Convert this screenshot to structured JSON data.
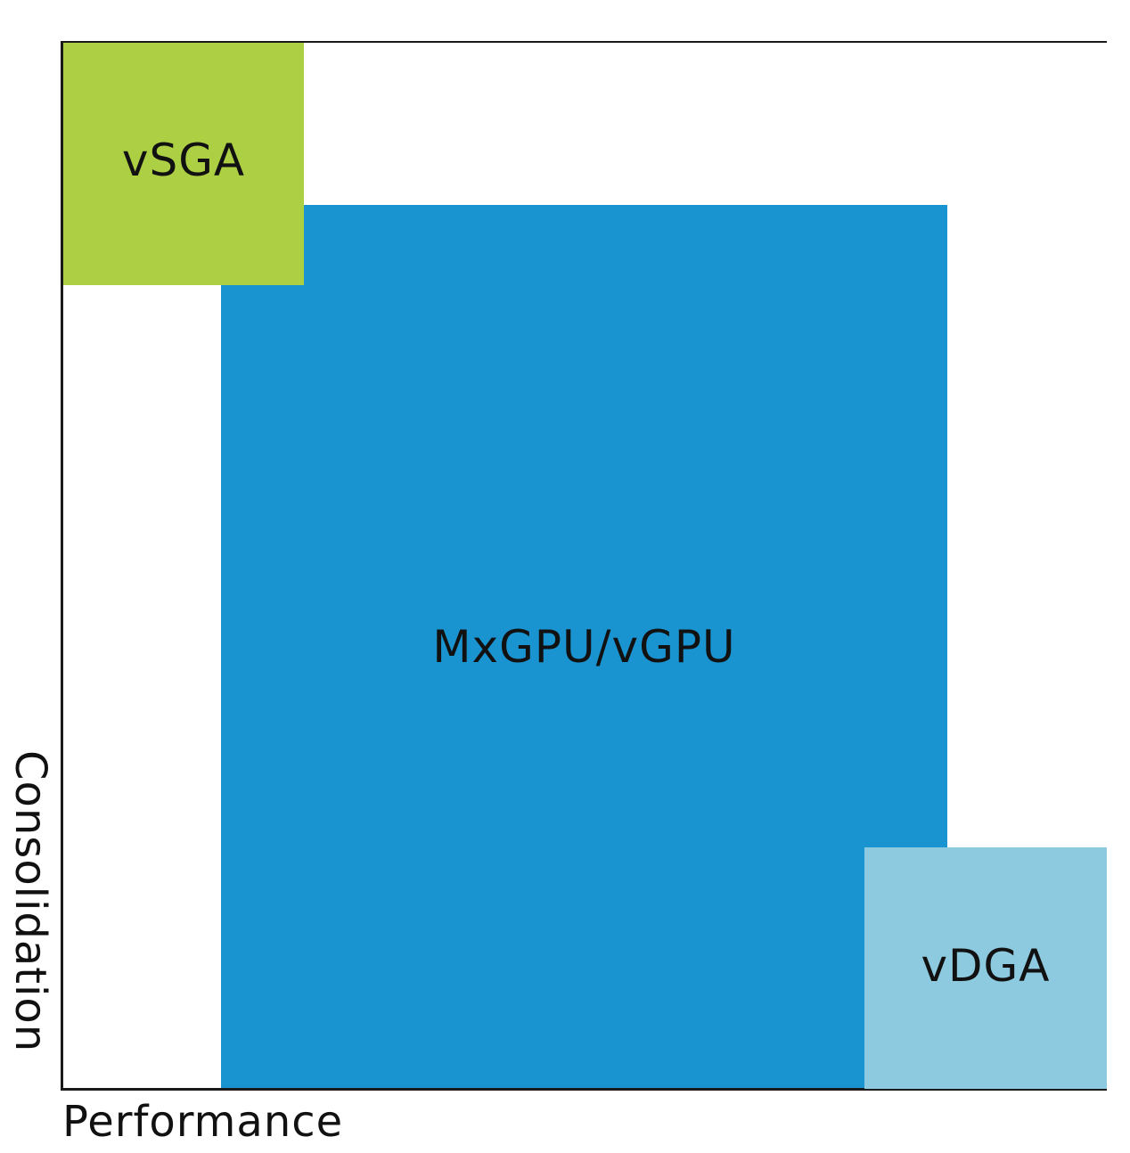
{
  "diagram": {
    "x_axis_label": "Performance",
    "y_axis_label": "Consolidation",
    "regions": [
      {
        "id": "vsga",
        "label": "vSGA",
        "color": "#adcf43"
      },
      {
        "id": "mxgpu",
        "label": "MxGPU/vGPU",
        "color": "#1a94d1"
      },
      {
        "id": "vdga",
        "label": "vDGA",
        "color": "#8ecadf"
      }
    ]
  }
}
